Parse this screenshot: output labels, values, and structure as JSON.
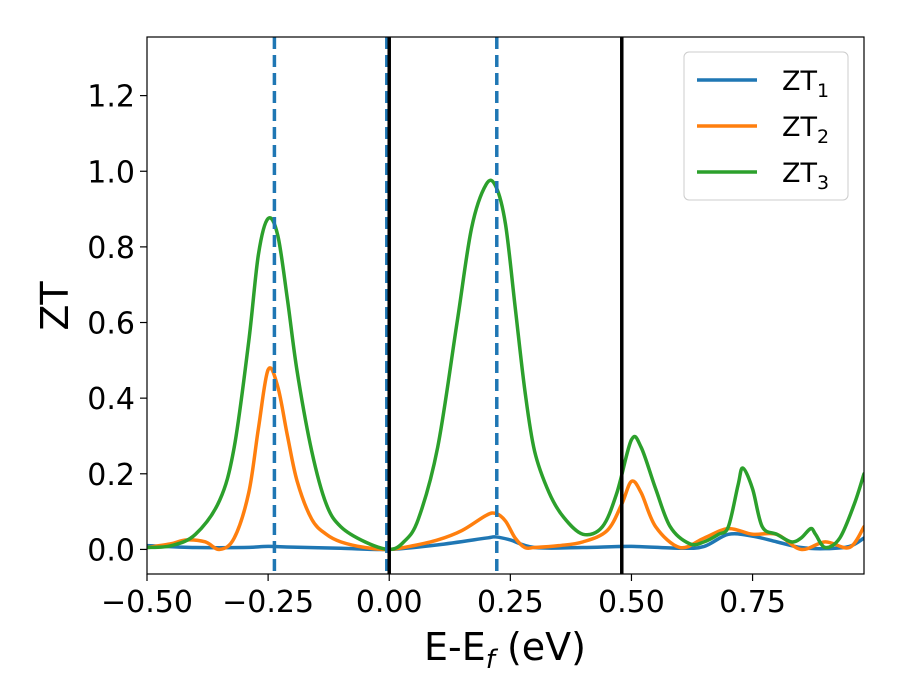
{
  "chart_data": {
    "type": "line",
    "xlabel": "E-E",
    "xlabel_sub": "f",
    "xlabel_unit": " (eV)",
    "ylabel": "ZT",
    "xlim": [
      -0.5,
      0.98
    ],
    "ylim": [
      -0.065,
      1.355
    ],
    "xticks": [
      -0.5,
      -0.25,
      0.0,
      0.25,
      0.5,
      0.75
    ],
    "xtick_labels": [
      "−0.50",
      "−0.25",
      "0.00",
      "0.25",
      "0.50",
      "0.75"
    ],
    "yticks": [
      0.0,
      0.2,
      0.4,
      0.6,
      0.8,
      1.0,
      1.2
    ],
    "ytick_labels": [
      "0.0",
      "0.2",
      "0.4",
      "0.6",
      "0.8",
      "1.0",
      "1.2"
    ],
    "grid": false,
    "legend_position": "top-right",
    "vlines": [
      {
        "x": -0.237,
        "style": "dashed",
        "color": "#1f77b4"
      },
      {
        "x": -0.005,
        "style": "dashed",
        "color": "#1f77b4"
      },
      {
        "x": 0.222,
        "style": "dashed",
        "color": "#1f77b4"
      },
      {
        "x": 0.0,
        "style": "solid",
        "color": "#000000"
      },
      {
        "x": 0.48,
        "style": "solid",
        "color": "#000000"
      }
    ],
    "series": [
      {
        "name": "ZT",
        "name_sub": "1",
        "color": "#1f77b4",
        "x": [
          -0.5,
          -0.4,
          -0.3,
          -0.25,
          -0.2,
          -0.1,
          0.0,
          0.1,
          0.2,
          0.22,
          0.25,
          0.3,
          0.4,
          0.5,
          0.6,
          0.65,
          0.7,
          0.75,
          0.8,
          0.85,
          0.9,
          0.95,
          0.98
        ],
        "y": [
          0.01,
          0.005,
          0.005,
          0.008,
          0.006,
          0.003,
          0.0,
          0.012,
          0.03,
          0.033,
          0.025,
          0.005,
          0.005,
          0.008,
          0.003,
          0.008,
          0.04,
          0.035,
          0.02,
          0.005,
          0.002,
          0.008,
          0.03
        ]
      },
      {
        "name": "ZT",
        "name_sub": "2",
        "color": "#ff7f0e",
        "x": [
          -0.5,
          -0.45,
          -0.42,
          -0.38,
          -0.35,
          -0.32,
          -0.29,
          -0.27,
          -0.25,
          -0.23,
          -0.21,
          -0.19,
          -0.16,
          -0.13,
          -0.1,
          -0.05,
          0.0,
          0.05,
          0.1,
          0.15,
          0.2,
          0.22,
          0.24,
          0.26,
          0.28,
          0.3,
          0.35,
          0.4,
          0.45,
          0.48,
          0.5,
          0.52,
          0.55,
          0.6,
          0.65,
          0.7,
          0.75,
          0.8,
          0.85,
          0.9,
          0.95,
          0.98
        ],
        "y": [
          0.005,
          0.015,
          0.025,
          0.02,
          0.0,
          0.03,
          0.15,
          0.32,
          0.475,
          0.43,
          0.3,
          0.18,
          0.08,
          0.04,
          0.02,
          0.005,
          0.0,
          0.01,
          0.025,
          0.05,
          0.09,
          0.095,
          0.075,
          0.03,
          0.005,
          0.005,
          0.01,
          0.02,
          0.05,
          0.12,
          0.18,
          0.15,
          0.06,
          0.005,
          0.03,
          0.055,
          0.04,
          0.04,
          0.0,
          0.02,
          0.005,
          0.06
        ]
      },
      {
        "name": "ZT",
        "name_sub": "3",
        "color": "#2ca02c",
        "x": [
          -0.5,
          -0.45,
          -0.4,
          -0.35,
          -0.32,
          -0.29,
          -0.27,
          -0.25,
          -0.23,
          -0.21,
          -0.19,
          -0.16,
          -0.13,
          -0.1,
          -0.05,
          0.0,
          0.03,
          0.06,
          0.1,
          0.14,
          0.17,
          0.2,
          0.22,
          0.24,
          0.26,
          0.28,
          0.3,
          0.33,
          0.36,
          0.4,
          0.44,
          0.47,
          0.5,
          0.52,
          0.55,
          0.58,
          0.62,
          0.65,
          0.68,
          0.7,
          0.72,
          0.73,
          0.75,
          0.77,
          0.8,
          0.83,
          0.85,
          0.87,
          0.88,
          0.9,
          0.93,
          0.96,
          0.98
        ],
        "y": [
          0.005,
          0.01,
          0.04,
          0.13,
          0.27,
          0.55,
          0.78,
          0.875,
          0.83,
          0.66,
          0.47,
          0.26,
          0.12,
          0.06,
          0.02,
          0.0,
          0.02,
          0.08,
          0.27,
          0.6,
          0.85,
          0.965,
          0.96,
          0.86,
          0.64,
          0.42,
          0.26,
          0.15,
          0.085,
          0.04,
          0.06,
          0.15,
          0.29,
          0.27,
          0.16,
          0.06,
          0.015,
          0.02,
          0.04,
          0.06,
          0.17,
          0.215,
          0.16,
          0.06,
          0.04,
          0.02,
          0.03,
          0.055,
          0.04,
          0.005,
          0.03,
          0.12,
          0.2
        ]
      }
    ]
  }
}
